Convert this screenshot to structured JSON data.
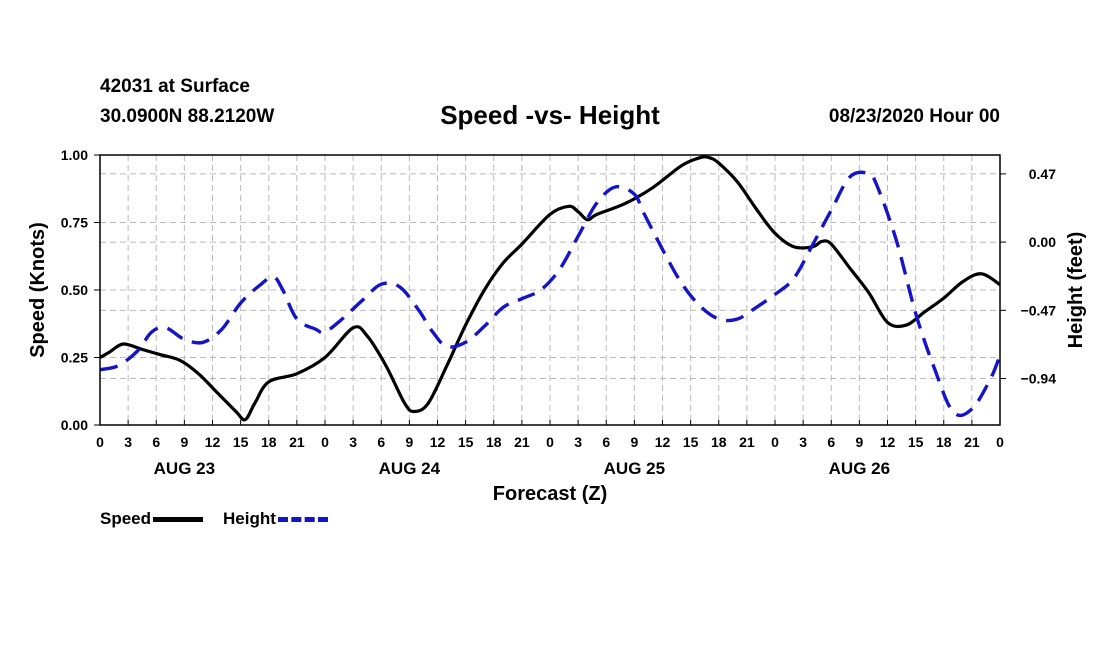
{
  "header": {
    "station": "42031 at Surface",
    "coords": "30.0900N 88.2120W",
    "title": "Speed -vs- Height",
    "datetime": "08/23/2020 Hour 00"
  },
  "legend": {
    "speed_label": "Speed",
    "height_label": "Height"
  },
  "chart_data": {
    "type": "line",
    "title": "Speed -vs- Height",
    "xlabel": "Forecast (Z)",
    "ylabel_left": "Speed (Knots)",
    "ylabel_right": "Height (feet)",
    "x_range_hours": [
      0,
      96
    ],
    "ylim_left": [
      0,
      1
    ],
    "ylim_right": [
      -1.26,
      0.6
    ],
    "y_ticks_left": [
      "0.00",
      "0.25",
      "0.50",
      "0.75",
      "1.00"
    ],
    "y_tick_values_left": [
      0,
      0.25,
      0.5,
      0.75,
      1.0
    ],
    "y_ticks_right": [
      "0.47",
      "0.00",
      "−0.47",
      "−0.94"
    ],
    "y_tick_values_right": [
      0.47,
      0,
      -0.47,
      -0.94
    ],
    "x_tick_labels": [
      "0",
      "3",
      "6",
      "9",
      "12",
      "15",
      "18",
      "21",
      "0",
      "3",
      "6",
      "9",
      "12",
      "15",
      "18",
      "21",
      "0",
      "3",
      "6",
      "9",
      "12",
      "15",
      "18",
      "21",
      "0",
      "3",
      "6",
      "9",
      "12",
      "15",
      "18",
      "21",
      "0"
    ],
    "day_labels": [
      {
        "label": "AUG 23",
        "hour": 9
      },
      {
        "label": "AUG 24",
        "hour": 33
      },
      {
        "label": "AUG 25",
        "hour": 57
      },
      {
        "label": "AUG 26",
        "hour": 81
      }
    ],
    "grid": true,
    "colors": {
      "speed": "#000000",
      "height": "#1414c8",
      "grid": "#bbbbbb"
    },
    "series": [
      {
        "name": "Speed",
        "axis": "left",
        "style": "solid",
        "x": [
          0,
          1,
          2.5,
          4.5,
          6.5,
          8.5,
          10.5,
          12.5,
          14.5,
          15.5,
          16.5,
          18,
          21,
          24,
          27,
          28.5,
          30.5,
          32.5,
          33.5,
          35,
          37,
          39,
          41,
          43,
          45,
          48,
          50,
          51,
          52,
          53,
          56,
          59,
          62,
          64,
          65,
          66,
          68,
          70,
          72,
          74,
          76,
          77,
          78,
          80,
          82,
          84,
          86,
          88,
          90,
          92,
          94,
          96
        ],
        "values": [
          0.25,
          0.27,
          0.3,
          0.28,
          0.26,
          0.24,
          0.19,
          0.12,
          0.05,
          0.02,
          0.08,
          0.16,
          0.19,
          0.25,
          0.36,
          0.33,
          0.22,
          0.08,
          0.05,
          0.08,
          0.22,
          0.37,
          0.5,
          0.6,
          0.67,
          0.78,
          0.81,
          0.79,
          0.76,
          0.78,
          0.82,
          0.88,
          0.96,
          0.99,
          0.99,
          0.97,
          0.9,
          0.8,
          0.71,
          0.66,
          0.66,
          0.68,
          0.67,
          0.58,
          0.49,
          0.38,
          0.37,
          0.42,
          0.47,
          0.53,
          0.56,
          0.52
        ]
      },
      {
        "name": "Height",
        "axis": "right",
        "style": "dashed",
        "x": [
          0,
          2,
          4,
          5.5,
          7,
          9,
          11,
          13,
          15,
          17,
          18.5,
          19.5,
          21,
          23,
          24,
          26,
          28,
          30,
          32,
          34,
          35.5,
          37,
          39,
          41,
          43,
          45,
          47,
          49,
          51,
          53,
          55,
          57,
          58,
          60,
          62,
          64,
          66,
          68,
          70,
          72,
          74,
          76,
          78,
          80,
          82,
          83,
          85,
          87,
          89,
          91,
          93,
          95,
          96
        ],
        "values": [
          -0.88,
          -0.85,
          -0.75,
          -0.62,
          -0.59,
          -0.67,
          -0.69,
          -0.6,
          -0.42,
          -0.3,
          -0.24,
          -0.33,
          -0.53,
          -0.6,
          -0.62,
          -0.52,
          -0.4,
          -0.29,
          -0.31,
          -0.47,
          -0.62,
          -0.72,
          -0.69,
          -0.58,
          -0.45,
          -0.39,
          -0.33,
          -0.19,
          0.04,
          0.27,
          0.38,
          0.33,
          0.2,
          -0.05,
          -0.28,
          -0.44,
          -0.53,
          -0.53,
          -0.45,
          -0.36,
          -0.25,
          -0.02,
          0.22,
          0.45,
          0.47,
          0.37,
          0.0,
          -0.49,
          -0.87,
          -1.17,
          -1.15,
          -0.94,
          -0.78
        ]
      }
    ]
  }
}
